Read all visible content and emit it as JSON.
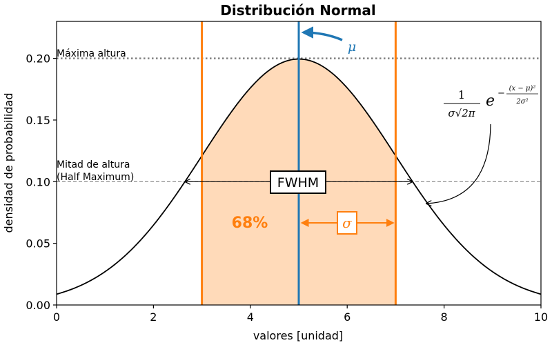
{
  "chart_data": {
    "type": "line",
    "title": "Distribución Normal",
    "xlabel": "valores [unidad]",
    "ylabel": "densidad de probabilidad",
    "xlim": [
      0,
      10
    ],
    "ylim": [
      0,
      0.23
    ],
    "x_ticks": [
      0,
      2,
      4,
      6,
      8,
      10
    ],
    "y_ticks": [
      0.0,
      0.05,
      0.1,
      0.15,
      0.2
    ],
    "y_tick_labels": [
      "0.00",
      "0.05",
      "0.10",
      "0.15",
      "0.20"
    ],
    "grid": false,
    "distribution": {
      "mean": 5,
      "sigma": 2
    },
    "max_height": 0.2,
    "half_max": 0.1,
    "fwhm_range": [
      2.645,
      7.355
    ],
    "shaded_region": [
      3,
      7
    ],
    "vertical_lines": [
      3,
      5,
      7
    ],
    "colors": {
      "curve": "#000000",
      "mean_line": "#1f77b4",
      "sigma_lines": "#ff7f0e",
      "fill": "#ffdab9"
    },
    "annotations": {
      "max_label": "Máxima altura",
      "half_label_1": "Mitad de altura",
      "half_label_2": "(Half Maximum)",
      "fwhm": "FWHM",
      "pct": "68%",
      "sigma": "σ",
      "mu": "μ",
      "formula": {
        "numerator": "1",
        "denominator": "σ√2π",
        "base": "e",
        "exp_sign": "−",
        "exp_numerator": "(x − μ)²",
        "exp_denominator": "2σ²"
      }
    }
  }
}
